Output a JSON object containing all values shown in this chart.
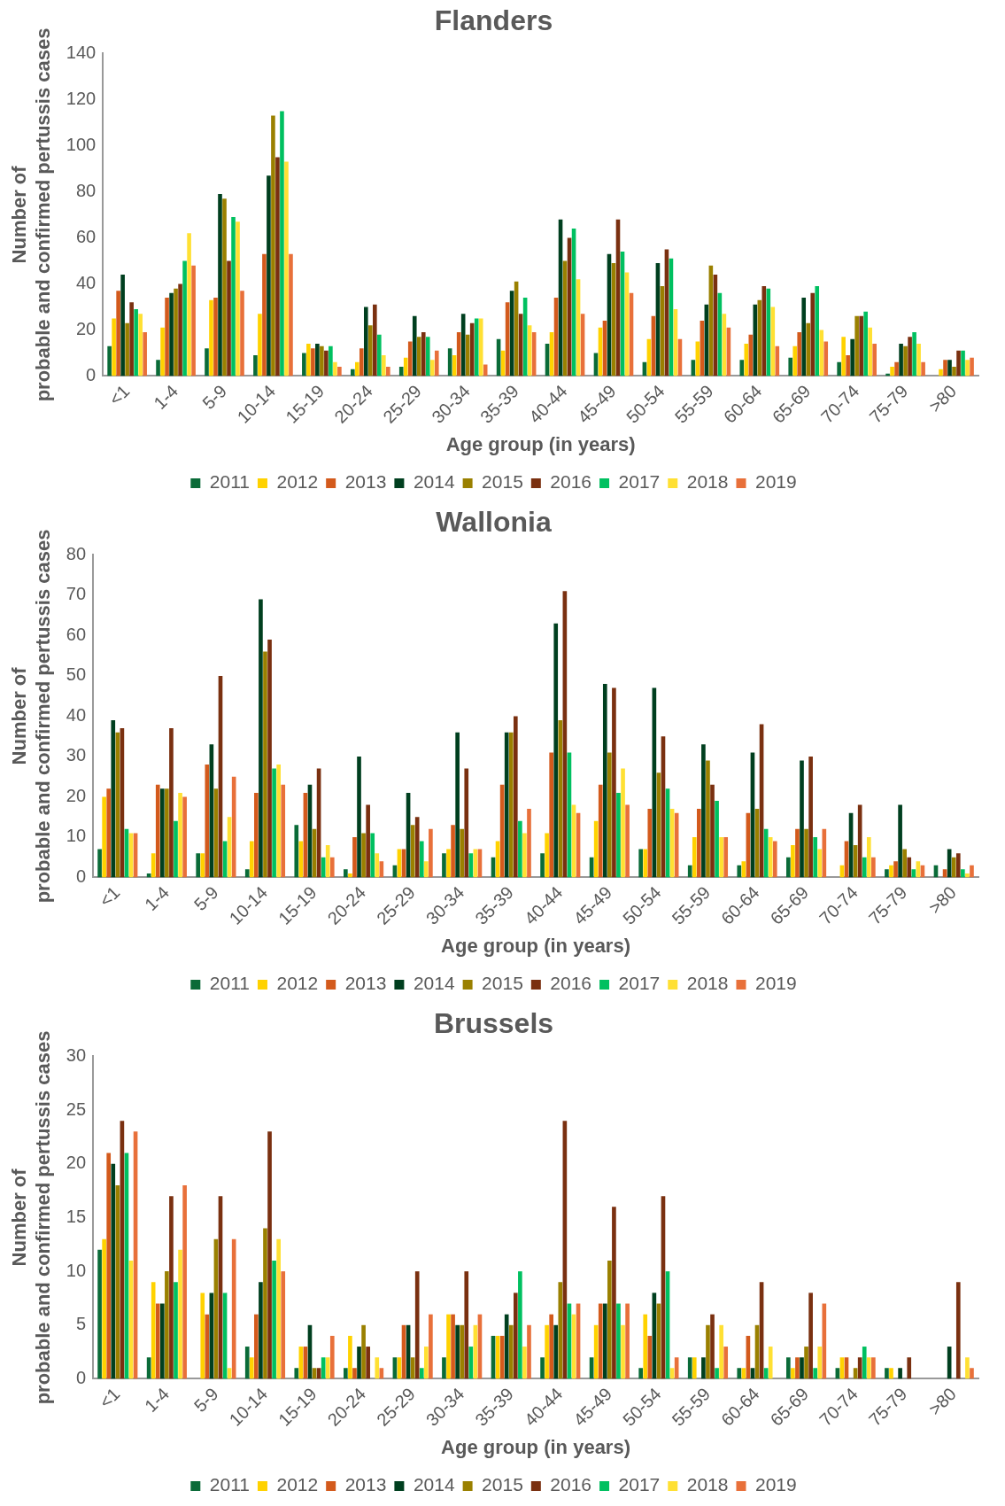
{
  "chart_data": [
    {
      "type": "bar",
      "title": "Flanders",
      "xlabel": "Age group (in years)",
      "ylabel": "Number of probable and confirmed pertussis cases",
      "categories": [
        "<1",
        "1-4",
        "5-9",
        "10-14",
        "15-19",
        "20-24",
        "25-29",
        "30-34",
        "35-39",
        "40-44",
        "45-49",
        "50-54",
        "55-59",
        "60-64",
        "65-69",
        "70-74",
        "75-79",
        ">80"
      ],
      "ylim": [
        0,
        140
      ],
      "yticks": [
        0,
        20,
        40,
        60,
        80,
        100,
        120,
        140
      ],
      "grid": false,
      "legend": "bottom",
      "series": [
        {
          "name": "2011",
          "color": "#0a6b38",
          "values": [
            13,
            7,
            12,
            9,
            10,
            3,
            4,
            12,
            16,
            14,
            10,
            6,
            7,
            7,
            8,
            6,
            1,
            0
          ]
        },
        {
          "name": "2012",
          "color": "#ffd200",
          "values": [
            25,
            21,
            33,
            27,
            14,
            6,
            8,
            9,
            11,
            19,
            21,
            16,
            15,
            14,
            13,
            17,
            4,
            3
          ]
        },
        {
          "name": "2013",
          "color": "#d35a1c",
          "values": [
            37,
            34,
            34,
            53,
            12,
            12,
            15,
            19,
            32,
            34,
            24,
            26,
            24,
            18,
            19,
            9,
            6,
            7
          ]
        },
        {
          "name": "2014",
          "color": "#003f1f",
          "values": [
            44,
            36,
            79,
            87,
            14,
            30,
            26,
            27,
            37,
            68,
            53,
            49,
            31,
            31,
            34,
            16,
            14,
            7
          ]
        },
        {
          "name": "2015",
          "color": "#9a8000",
          "values": [
            23,
            38,
            77,
            113,
            13,
            22,
            17,
            18,
            41,
            50,
            49,
            39,
            48,
            33,
            23,
            26,
            13,
            4
          ]
        },
        {
          "name": "2016",
          "color": "#7a3010",
          "values": [
            32,
            40,
            50,
            95,
            11,
            31,
            19,
            23,
            27,
            60,
            68,
            55,
            44,
            39,
            36,
            26,
            17,
            11
          ]
        },
        {
          "name": "2017",
          "color": "#00c060",
          "values": [
            29,
            50,
            69,
            115,
            13,
            18,
            17,
            25,
            34,
            64,
            54,
            51,
            36,
            38,
            39,
            28,
            19,
            11
          ]
        },
        {
          "name": "2018",
          "color": "#ffe033",
          "values": [
            27,
            62,
            67,
            93,
            6,
            9,
            7,
            25,
            22,
            42,
            45,
            29,
            27,
            30,
            20,
            21,
            14,
            7
          ]
        },
        {
          "name": "2019",
          "color": "#e8703a",
          "values": [
            19,
            48,
            37,
            53,
            4,
            4,
            11,
            5,
            19,
            27,
            36,
            16,
            21,
            13,
            15,
            14,
            6,
            8
          ]
        }
      ]
    },
    {
      "type": "bar",
      "title": "Wallonia",
      "xlabel": "Age group (in years)",
      "ylabel": "Number of probable and confirmed pertussis cases",
      "categories": [
        "<1",
        "1-4",
        "5-9",
        "10-14",
        "15-19",
        "20-24",
        "25-29",
        "30-34",
        "35-39",
        "40-44",
        "45-49",
        "50-54",
        "55-59",
        "60-64",
        "65-69",
        "70-74",
        "75-79",
        ">80"
      ],
      "ylim": [
        0,
        80
      ],
      "yticks": [
        0,
        10,
        20,
        30,
        40,
        50,
        60,
        70,
        80
      ],
      "grid": false,
      "legend": "bottom",
      "series": [
        {
          "name": "2011",
          "color": "#0a6b38",
          "values": [
            7,
            1,
            6,
            2,
            13,
            2,
            3,
            6,
            5,
            6,
            5,
            7,
            3,
            3,
            5,
            0,
            2,
            3
          ]
        },
        {
          "name": "2012",
          "color": "#ffd200",
          "values": [
            20,
            6,
            6,
            9,
            9,
            1,
            7,
            7,
            9,
            11,
            14,
            7,
            10,
            4,
            8,
            3,
            3,
            0
          ]
        },
        {
          "name": "2013",
          "color": "#d35a1c",
          "values": [
            22,
            23,
            28,
            21,
            21,
            10,
            7,
            13,
            23,
            31,
            23,
            17,
            17,
            16,
            12,
            9,
            4,
            2
          ]
        },
        {
          "name": "2014",
          "color": "#003f1f",
          "values": [
            39,
            22,
            33,
            69,
            23,
            30,
            21,
            36,
            36,
            63,
            48,
            47,
            33,
            31,
            29,
            16,
            18,
            7
          ]
        },
        {
          "name": "2015",
          "color": "#9a8000",
          "values": [
            36,
            22,
            22,
            56,
            12,
            11,
            13,
            12,
            36,
            39,
            31,
            26,
            29,
            17,
            12,
            8,
            7,
            5
          ]
        },
        {
          "name": "2016",
          "color": "#7a3010",
          "values": [
            37,
            37,
            50,
            59,
            27,
            18,
            15,
            27,
            40,
            71,
            47,
            35,
            23,
            38,
            30,
            18,
            5,
            6
          ]
        },
        {
          "name": "2017",
          "color": "#00c060",
          "values": [
            12,
            14,
            9,
            27,
            5,
            11,
            9,
            6,
            14,
            31,
            21,
            22,
            19,
            12,
            10,
            5,
            2,
            2
          ]
        },
        {
          "name": "2018",
          "color": "#ffe033",
          "values": [
            11,
            21,
            15,
            28,
            8,
            6,
            4,
            7,
            11,
            18,
            27,
            17,
            10,
            10,
            7,
            10,
            4,
            1
          ]
        },
        {
          "name": "2019",
          "color": "#e8703a",
          "values": [
            11,
            20,
            25,
            23,
            5,
            4,
            12,
            7,
            17,
            16,
            18,
            16,
            10,
            9,
            12,
            5,
            3,
            3
          ]
        }
      ]
    },
    {
      "type": "bar",
      "title": "Brussels",
      "xlabel": "Age group (in years)",
      "ylabel": "Number of probable and confirmed pertussis cases",
      "categories": [
        "<1",
        "1-4",
        "5-9",
        "10-14",
        "15-19",
        "20-24",
        "25-29",
        "30-34",
        "35-39",
        "40-44",
        "45-49",
        "50-54",
        "55-59",
        "60-64",
        "65-69",
        "70-74",
        "75-79",
        ">80"
      ],
      "ylim": [
        0,
        30
      ],
      "yticks": [
        0,
        5,
        10,
        15,
        20,
        25,
        30
      ],
      "grid": false,
      "legend": "bottom",
      "series": [
        {
          "name": "2011",
          "color": "#0a6b38",
          "values": [
            12,
            2,
            0,
            3,
            1,
            1,
            2,
            2,
            4,
            2,
            2,
            1,
            2,
            1,
            2,
            1,
            1,
            0
          ]
        },
        {
          "name": "2012",
          "color": "#ffd200",
          "values": [
            13,
            9,
            8,
            2,
            3,
            4,
            2,
            6,
            4,
            5,
            5,
            6,
            2,
            1,
            1,
            2,
            1,
            0
          ]
        },
        {
          "name": "2013",
          "color": "#d35a1c",
          "values": [
            21,
            7,
            6,
            6,
            3,
            1,
            5,
            6,
            4,
            6,
            7,
            4,
            0,
            4,
            2,
            2,
            0,
            0
          ]
        },
        {
          "name": "2014",
          "color": "#003f1f",
          "values": [
            20,
            7,
            8,
            9,
            5,
            3,
            5,
            5,
            6,
            5,
            7,
            8,
            2,
            1,
            2,
            0,
            1,
            3
          ]
        },
        {
          "name": "2015",
          "color": "#9a8000",
          "values": [
            18,
            10,
            13,
            14,
            1,
            5,
            2,
            5,
            5,
            9,
            11,
            7,
            5,
            5,
            3,
            1,
            0,
            0
          ]
        },
        {
          "name": "2016",
          "color": "#7a3010",
          "values": [
            24,
            17,
            17,
            23,
            1,
            3,
            10,
            10,
            8,
            24,
            16,
            17,
            6,
            9,
            8,
            2,
            2,
            9
          ]
        },
        {
          "name": "2017",
          "color": "#00c060",
          "values": [
            21,
            9,
            8,
            11,
            2,
            0,
            1,
            3,
            10,
            7,
            7,
            10,
            1,
            1,
            1,
            3,
            0,
            0
          ]
        },
        {
          "name": "2018",
          "color": "#ffe033",
          "values": [
            11,
            12,
            1,
            13,
            2,
            2,
            3,
            5,
            3,
            6,
            5,
            1,
            5,
            3,
            3,
            2,
            0,
            2
          ]
        },
        {
          "name": "2019",
          "color": "#e8703a",
          "values": [
            23,
            18,
            13,
            10,
            4,
            1,
            6,
            6,
            5,
            7,
            7,
            2,
            3,
            0,
            7,
            2,
            0,
            1
          ]
        }
      ]
    }
  ]
}
